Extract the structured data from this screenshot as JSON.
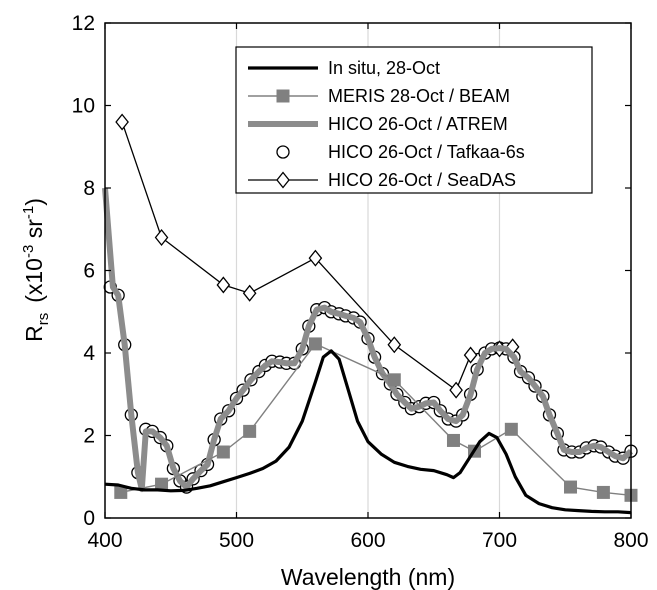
{
  "chart_data": {
    "type": "line",
    "xlabel": "Wavelength (nm)",
    "ylabel": {
      "base": "R",
      "sub": "rs",
      "unit_prefix": "(x10",
      "exp1": "-3",
      "unit_mid": " sr",
      "exp2": "-1",
      "unit_suffix": ")"
    },
    "xlim": [
      400,
      800
    ],
    "ylim": [
      0,
      12
    ],
    "xticks": [
      400,
      500,
      600,
      700,
      800
    ],
    "yticks": [
      0,
      2,
      4,
      6,
      8,
      10,
      12
    ],
    "grid": "vertical",
    "legend_position": "top-right",
    "series": [
      {
        "name": "In situ, 28-Oct",
        "color": "#000000",
        "style": "thick-line",
        "points": [
          [
            400,
            0.82
          ],
          [
            410,
            0.8
          ],
          [
            420,
            0.72
          ],
          [
            430,
            0.68
          ],
          [
            440,
            0.68
          ],
          [
            450,
            0.66
          ],
          [
            460,
            0.67
          ],
          [
            470,
            0.72
          ],
          [
            480,
            0.78
          ],
          [
            490,
            0.88
          ],
          [
            500,
            0.98
          ],
          [
            510,
            1.08
          ],
          [
            520,
            1.2
          ],
          [
            530,
            1.38
          ],
          [
            540,
            1.72
          ],
          [
            550,
            2.35
          ],
          [
            560,
            3.3
          ],
          [
            566,
            3.9
          ],
          [
            572,
            4.05
          ],
          [
            578,
            3.85
          ],
          [
            585,
            3.1
          ],
          [
            592,
            2.35
          ],
          [
            600,
            1.85
          ],
          [
            610,
            1.55
          ],
          [
            620,
            1.35
          ],
          [
            630,
            1.25
          ],
          [
            640,
            1.18
          ],
          [
            650,
            1.15
          ],
          [
            660,
            1.05
          ],
          [
            665,
            0.98
          ],
          [
            670,
            1.1
          ],
          [
            677,
            1.45
          ],
          [
            685,
            1.85
          ],
          [
            692,
            2.05
          ],
          [
            698,
            1.95
          ],
          [
            705,
            1.55
          ],
          [
            712,
            1.0
          ],
          [
            720,
            0.55
          ],
          [
            730,
            0.35
          ],
          [
            740,
            0.25
          ],
          [
            750,
            0.2
          ],
          [
            760,
            0.18
          ],
          [
            770,
            0.16
          ],
          [
            780,
            0.15
          ],
          [
            790,
            0.15
          ],
          [
            800,
            0.13
          ]
        ]
      },
      {
        "name": "MERIS 28-Oct / BEAM",
        "color": "#808080",
        "marker": "square",
        "points": [
          [
            412,
            0.62
          ],
          [
            443,
            0.82
          ],
          [
            490,
            1.6
          ],
          [
            510,
            2.1
          ],
          [
            560,
            4.22
          ],
          [
            620,
            3.35
          ],
          [
            665,
            1.88
          ],
          [
            681,
            1.62
          ],
          [
            709,
            2.15
          ],
          [
            754,
            0.75
          ],
          [
            779,
            0.62
          ],
          [
            800,
            0.55
          ]
        ]
      },
      {
        "name": "HICO 26-Oct / ATREM",
        "color": "#8c8c8c",
        "style": "thick-line",
        "points": [
          [
            400,
            8.0
          ],
          [
            406,
            5.6
          ],
          [
            410,
            5.4
          ],
          [
            415,
            4.2
          ],
          [
            420,
            2.5
          ],
          [
            425,
            1.1
          ],
          [
            428,
            0.7
          ],
          [
            431,
            2.1
          ],
          [
            436,
            2.1
          ],
          [
            442,
            1.95
          ],
          [
            447,
            1.75
          ],
          [
            452,
            1.2
          ],
          [
            457,
            0.9
          ],
          [
            462,
            0.75
          ],
          [
            467,
            0.95
          ],
          [
            473,
            1.15
          ],
          [
            478,
            1.3
          ],
          [
            483,
            1.9
          ],
          [
            488,
            2.4
          ],
          [
            494,
            2.6
          ],
          [
            500,
            2.9
          ],
          [
            505,
            3.1
          ],
          [
            511,
            3.35
          ],
          [
            517,
            3.55
          ],
          [
            522,
            3.7
          ],
          [
            527,
            3.8
          ],
          [
            533,
            3.78
          ],
          [
            538,
            3.75
          ],
          [
            544,
            3.75
          ],
          [
            550,
            4.1
          ],
          [
            555,
            4.65
          ],
          [
            561,
            5.05
          ],
          [
            567,
            5.1
          ],
          [
            572,
            5.0
          ],
          [
            578,
            4.95
          ],
          [
            583,
            4.9
          ],
          [
            589,
            4.85
          ],
          [
            594,
            4.75
          ],
          [
            600,
            4.35
          ],
          [
            605,
            3.9
          ],
          [
            611,
            3.5
          ],
          [
            617,
            3.25
          ],
          [
            622,
            3.0
          ],
          [
            628,
            2.8
          ],
          [
            633,
            2.65
          ],
          [
            639,
            2.7
          ],
          [
            644,
            2.78
          ],
          [
            650,
            2.8
          ],
          [
            655,
            2.6
          ],
          [
            661,
            2.4
          ],
          [
            667,
            2.35
          ],
          [
            672,
            2.5
          ],
          [
            678,
            3.0
          ],
          [
            683,
            3.6
          ],
          [
            689,
            4.0
          ],
          [
            694,
            4.1
          ],
          [
            700,
            4.12
          ],
          [
            705,
            4.1
          ],
          [
            711,
            3.9
          ],
          [
            716,
            3.55
          ],
          [
            722,
            3.4
          ],
          [
            727,
            3.2
          ],
          [
            733,
            2.95
          ],
          [
            738,
            2.5
          ],
          [
            744,
            2.05
          ],
          [
            749,
            1.65
          ],
          [
            755,
            1.6
          ],
          [
            761,
            1.6
          ],
          [
            766,
            1.7
          ],
          [
            772,
            1.75
          ],
          [
            777,
            1.72
          ],
          [
            783,
            1.6
          ],
          [
            788,
            1.5
          ],
          [
            794,
            1.45
          ],
          [
            800,
            1.62
          ]
        ]
      },
      {
        "name": "HICO 26-Oct / Tafkaa-6s",
        "color": "#000000",
        "marker": "circle",
        "points": [
          [
            404,
            5.6
          ],
          [
            410,
            5.4
          ],
          [
            415,
            4.2
          ],
          [
            420,
            2.5
          ],
          [
            425,
            1.1
          ],
          [
            431,
            2.15
          ],
          [
            436,
            2.1
          ],
          [
            442,
            1.95
          ],
          [
            447,
            1.75
          ],
          [
            452,
            1.2
          ],
          [
            457,
            0.9
          ],
          [
            462,
            0.75
          ],
          [
            467,
            0.95
          ],
          [
            473,
            1.15
          ],
          [
            478,
            1.3
          ],
          [
            483,
            1.9
          ],
          [
            488,
            2.4
          ],
          [
            494,
            2.6
          ],
          [
            500,
            2.9
          ],
          [
            505,
            3.1
          ],
          [
            511,
            3.35
          ],
          [
            517,
            3.55
          ],
          [
            522,
            3.7
          ],
          [
            527,
            3.8
          ],
          [
            533,
            3.78
          ],
          [
            538,
            3.75
          ],
          [
            544,
            3.75
          ],
          [
            550,
            4.1
          ],
          [
            555,
            4.65
          ],
          [
            561,
            5.05
          ],
          [
            567,
            5.1
          ],
          [
            572,
            5.0
          ],
          [
            578,
            4.95
          ],
          [
            583,
            4.9
          ],
          [
            589,
            4.85
          ],
          [
            594,
            4.75
          ],
          [
            600,
            4.35
          ],
          [
            605,
            3.9
          ],
          [
            611,
            3.5
          ],
          [
            617,
            3.25
          ],
          [
            622,
            3.0
          ],
          [
            628,
            2.8
          ],
          [
            633,
            2.65
          ],
          [
            639,
            2.7
          ],
          [
            644,
            2.78
          ],
          [
            650,
            2.8
          ],
          [
            655,
            2.6
          ],
          [
            661,
            2.4
          ],
          [
            667,
            2.35
          ],
          [
            672,
            2.5
          ],
          [
            678,
            3.0
          ],
          [
            683,
            3.6
          ],
          [
            689,
            4.0
          ],
          [
            694,
            4.1
          ],
          [
            700,
            4.12
          ],
          [
            705,
            4.1
          ],
          [
            711,
            3.9
          ],
          [
            716,
            3.55
          ],
          [
            722,
            3.4
          ],
          [
            727,
            3.2
          ],
          [
            733,
            2.95
          ],
          [
            738,
            2.5
          ],
          [
            744,
            2.05
          ],
          [
            749,
            1.65
          ],
          [
            755,
            1.6
          ],
          [
            761,
            1.6
          ],
          [
            766,
            1.7
          ],
          [
            772,
            1.75
          ],
          [
            777,
            1.72
          ],
          [
            783,
            1.6
          ],
          [
            788,
            1.5
          ],
          [
            794,
            1.45
          ],
          [
            800,
            1.62
          ]
        ]
      },
      {
        "name": "HICO 26-Oct / SeaDAS",
        "color": "#000000",
        "marker": "diamond",
        "points": [
          [
            413,
            9.6
          ],
          [
            443,
            6.8
          ],
          [
            490,
            5.65
          ],
          [
            510,
            5.45
          ],
          [
            560,
            6.3
          ],
          [
            620,
            4.2
          ],
          [
            667,
            3.1
          ],
          [
            678,
            3.95
          ],
          [
            700,
            4.1
          ],
          [
            710,
            4.15
          ]
        ]
      }
    ]
  }
}
